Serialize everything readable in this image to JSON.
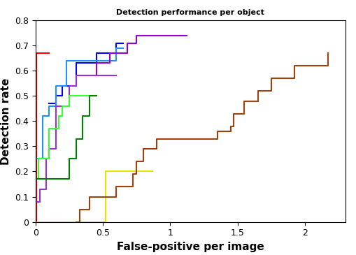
{
  "chart_data": {
    "type": "line",
    "title": "Detection performance per object",
    "x_label": "False-positive per image",
    "y_label": "Detection rate",
    "line_style": "steps",
    "grid": false,
    "xlim": [
      0,
      2.3
    ],
    "xticks": [
      0,
      0.5,
      1,
      1.5,
      2
    ],
    "ylim": [
      0,
      0.8
    ],
    "yticks": [
      0,
      0.1,
      0.2,
      0.3,
      0.4,
      0.5,
      0.6,
      0.7,
      0.8
    ],
    "series": [
      {
        "color": "#ff0000",
        "x": [
          0,
          0.005,
          0.1
        ],
        "values": [
          0,
          0.67,
          0.67
        ]
      },
      {
        "color": "#0000ff",
        "x": [
          0.1,
          0.15,
          0.2,
          0.3,
          0.45,
          0.6,
          0.65
        ],
        "values": [
          0.47,
          0.5,
          0.54,
          0.63,
          0.67,
          0.71,
          0.71
        ]
      },
      {
        "color": "#1e90ff",
        "x": [
          0,
          0.05,
          0.1,
          0.15,
          0.23,
          0.6,
          0.65
        ],
        "values": [
          0.25,
          0.42,
          0.46,
          0.54,
          0.64,
          0.69,
          0.69
        ]
      },
      {
        "color": "#9400d3",
        "x": [
          0.3,
          0.45,
          0.55,
          0.68,
          0.75,
          1.12
        ],
        "values": [
          0.58,
          0.63,
          0.67,
          0.71,
          0.74,
          0.74
        ]
      },
      {
        "color": "#9932cc",
        "x": [
          0,
          0.03,
          0.08,
          0.1,
          0.15,
          0.25,
          0.3,
          0.6
        ],
        "values": [
          0.08,
          0.13,
          0.25,
          0.29,
          0.46,
          0.54,
          0.58,
          0.58
        ]
      },
      {
        "color": "#33ff33",
        "x": [
          0,
          0.02,
          0.1,
          0.17,
          0.2,
          0.25,
          0.3,
          0.4
        ],
        "values": [
          0.17,
          0.25,
          0.37,
          0.42,
          0.46,
          0.5,
          0.5,
          0.5
        ]
      },
      {
        "color": "#008000",
        "x": [
          0,
          0.02,
          0.25,
          0.3,
          0.35,
          0.4,
          0.45
        ],
        "values": [
          0.17,
          0.17,
          0.25,
          0.33,
          0.42,
          0.5,
          0.5
        ]
      },
      {
        "color": "#e6e600",
        "x": [
          0,
          0.5,
          0.52,
          0.87
        ],
        "values": [
          0,
          0,
          0.2,
          0.2
        ]
      },
      {
        "color": "#a0400a",
        "x": [
          0.3,
          0.33,
          0.4,
          0.5,
          0.6,
          0.72,
          0.75,
          0.8,
          0.9,
          1.05,
          1.3,
          1.35,
          1.45,
          1.47,
          1.55,
          1.65,
          1.75,
          1.82,
          1.92,
          2.15,
          2.17
        ],
        "values": [
          0,
          0.05,
          0.1,
          0.1,
          0.14,
          0.19,
          0.24,
          0.29,
          0.33,
          0.33,
          0.33,
          0.36,
          0.38,
          0.43,
          0.48,
          0.52,
          0.57,
          0.57,
          0.62,
          0.62,
          0.67
        ]
      }
    ]
  }
}
